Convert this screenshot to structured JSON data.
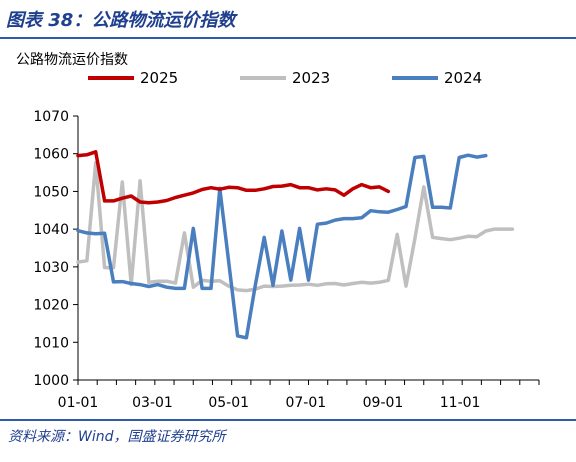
{
  "figure": {
    "title": "图表 38：公路物流运价指数",
    "source": "资料来源：Wind，国盛证券研究所"
  },
  "chart_data": {
    "type": "line",
    "title": "公路物流运价指数",
    "xlabel": "",
    "ylabel": "",
    "ylim": [
      1000,
      1070
    ],
    "y_ticks": [
      1000,
      1010,
      1020,
      1030,
      1040,
      1050,
      1060,
      1070
    ],
    "x_tick_labels": [
      "01-01",
      "03-01",
      "05-01",
      "07-01",
      "09-01",
      "11-01"
    ],
    "x_tick_weeks": [
      0,
      8.4,
      17,
      25.7,
      34.4,
      43.1
    ],
    "x_range_weeks": [
      0,
      52
    ],
    "grid": false,
    "legend_position": "top",
    "series": [
      {
        "name": "2025",
        "color": "#c00000",
        "values": [
          1059.5,
          1059.7,
          1060.5,
          1047.5,
          1047.5,
          1048.2,
          1048.8,
          1047.2,
          1047,
          1047.2,
          1047.6,
          1048.4,
          1049,
          1049.6,
          1050.5,
          1051,
          1050.6,
          1051.1,
          1051,
          1050.3,
          1050.3,
          1050.7,
          1051.3,
          1051.4,
          1051.8,
          1051,
          1051,
          1050.4,
          1050.7,
          1050.4,
          1049,
          1050.7,
          1051.8,
          1051,
          1051.2,
          1050
        ]
      },
      {
        "name": "2023",
        "color": "#bfbfbf",
        "values": [
          1031.3,
          1031.6,
          1057.6,
          1029.8,
          1029.8,
          1052.5,
          1025.3,
          1052.8,
          1025.9,
          1026.2,
          1026.2,
          1025.7,
          1039,
          1024.6,
          1026.4,
          1026.2,
          1026.3,
          1024.9,
          1023.9,
          1023.7,
          1024.1,
          1024.9,
          1024.8,
          1024.9,
          1025.1,
          1025.2,
          1025.4,
          1025.1,
          1025.5,
          1025.6,
          1025.2,
          1025.6,
          1025.9,
          1025.7,
          1025.9,
          1026.4,
          1038.6,
          1024.9,
          1037.5,
          1051.2,
          1037.8,
          1037.5,
          1037.2,
          1037.6,
          1038.1,
          1038,
          1039.5,
          1040,
          1040,
          1040
        ]
      },
      {
        "name": "2024",
        "color": "#4a7fbf",
        "values": [
          1039.6,
          1039,
          1038.8,
          1038.9,
          1026,
          1026.1,
          1025.6,
          1025.3,
          1024.8,
          1025.3,
          1024.6,
          1024.3,
          1024.3,
          1040.2,
          1024.3,
          1024.3,
          1050.8,
          1031.3,
          1011.7,
          1011.2,
          1025.1,
          1037.8,
          1025.1,
          1039.5,
          1026.5,
          1040.2,
          1026.5,
          1041.3,
          1041.6,
          1042.4,
          1042.8,
          1042.8,
          1043,
          1044.9,
          1044.6,
          1044.5,
          1045.2,
          1046,
          1059,
          1059.3,
          1045.8,
          1045.8,
          1045.6,
          1059,
          1059.6,
          1059.1,
          1059.5
        ]
      }
    ]
  }
}
